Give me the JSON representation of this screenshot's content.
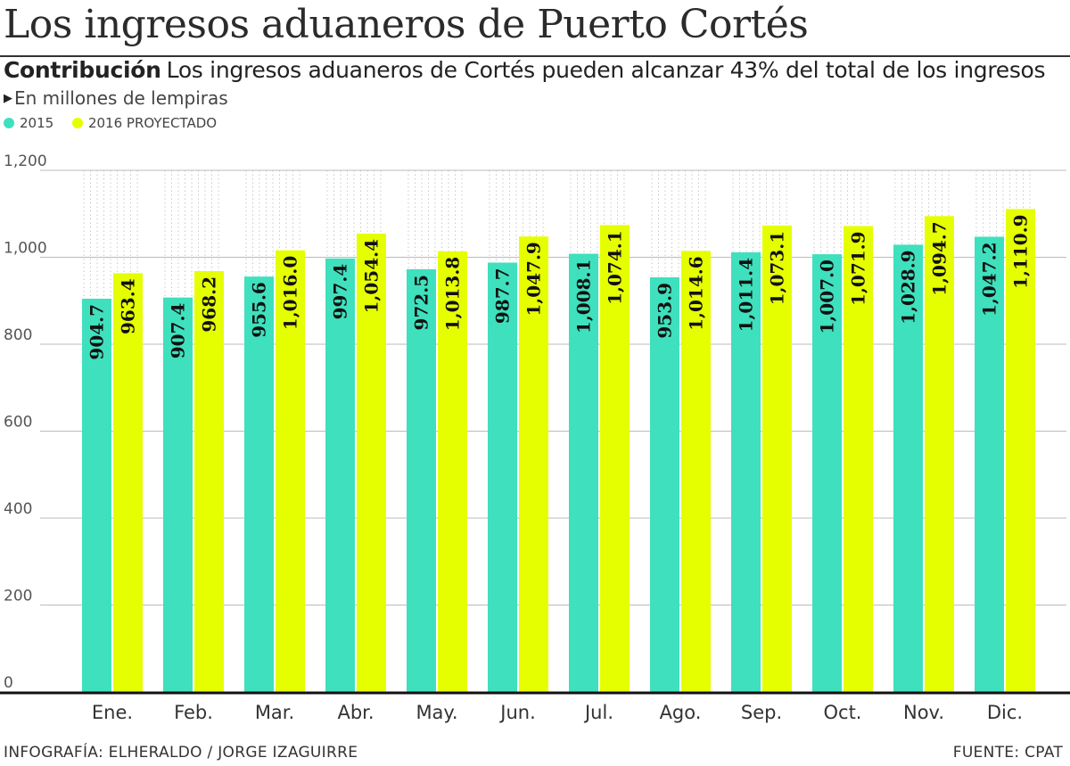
{
  "header": {
    "title": "Los ingresos aduaneros de Puerto Cortés",
    "subtitle_keyword": "Contribución",
    "subtitle_text": "Los ingresos aduaneros de Cortés pueden alcanzar 43% del total de los ingresos",
    "units": "En millones de lempiras"
  },
  "footer": {
    "credit": "INFOGRAFÍA: ELHERALDO / JORGE IZAGUIRRE",
    "source": "FUENTE: CPAT"
  },
  "colors": {
    "series_2015": "#3fe0bd",
    "series_2016": "#e6ff00",
    "axis": "#111111",
    "grid": "#bbbbbb"
  },
  "chart_data": {
    "type": "bar",
    "title": "Los ingresos aduaneros de Puerto Cortés",
    "xlabel": "",
    "ylabel": "En millones de lempiras",
    "ylim": [
      0,
      1200
    ],
    "yticks": [
      0,
      200,
      400,
      600,
      800,
      1000,
      1200
    ],
    "ytick_labels": [
      "0",
      "200",
      "400",
      "600",
      "800",
      "1,000",
      "1,200"
    ],
    "grid": true,
    "legend_position": "top-left",
    "categories": [
      "Ene.",
      "Feb.",
      "Mar.",
      "Abr.",
      "May.",
      "Jun.",
      "Jul.",
      "Ago.",
      "Sep.",
      "Oct.",
      "Nov.",
      "Dic."
    ],
    "series": [
      {
        "name": "2015",
        "values": [
          904.7,
          907.4,
          955.6,
          997.4,
          972.5,
          987.7,
          1008.1,
          953.9,
          1011.4,
          1007.0,
          1028.9,
          1047.2
        ],
        "labels": [
          "904.7",
          "907.4",
          "955.6",
          "997.4",
          "972.5",
          "987.7",
          "1,008.1",
          "953.9",
          "1,011.4",
          "1,007.0",
          "1,028.9",
          "1,047.2"
        ]
      },
      {
        "name": "2016 PROYECTADO",
        "values": [
          963.4,
          968.2,
          1016.0,
          1054.4,
          1013.8,
          1047.9,
          1074.1,
          1014.6,
          1073.1,
          1071.9,
          1094.7,
          1110.9
        ],
        "labels": [
          "963.4",
          "968.2",
          "1,016.0",
          "1,054.4",
          "1,013.8",
          "1,047.9",
          "1,074.1",
          "1,014.6",
          "1,073.1",
          "1,071.9",
          "1,094.7",
          "1,110.9"
        ]
      }
    ]
  }
}
